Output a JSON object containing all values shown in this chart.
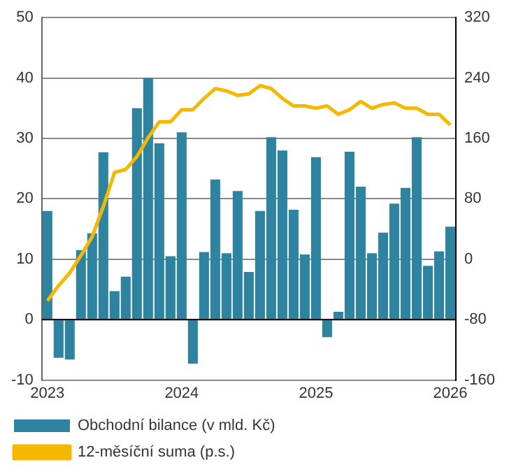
{
  "chart_data": {
    "type": "bar",
    "categories": [
      "2023",
      null,
      null,
      null,
      null,
      null,
      null,
      null,
      null,
      null,
      null,
      null,
      "2024",
      null,
      null,
      null,
      null,
      null,
      null,
      null,
      null,
      null,
      null,
      null,
      "2025",
      null,
      null,
      null,
      null,
      null,
      null,
      null,
      null,
      null,
      null,
      null,
      "2026"
    ],
    "series": [
      {
        "name": "Obchodní bilance (v mld. Kč)",
        "color": "#2e84a0",
        "values": [
          18,
          -6.3,
          -6.6,
          11.5,
          14.3,
          27.7,
          4.7,
          7.1,
          35,
          40,
          29.2,
          10.5,
          31,
          -7.3,
          11.2,
          23.2,
          11,
          21.3,
          7.9,
          18,
          30.2,
          28,
          18.2,
          10.8,
          26.9,
          -2.9,
          1.3,
          27.8,
          22,
          11,
          14.4,
          19.2,
          21.8,
          30.2,
          8.9,
          11.3,
          15.4
        ]
      },
      {
        "name": "12-měsíční suma (p.s.)",
        "type": "line",
        "axis": "y2",
        "color": "#f5b800",
        "values": [
          -55,
          -35,
          -18,
          5,
          30,
          70,
          115,
          119,
          136,
          161,
          182,
          182,
          198,
          198,
          213,
          226,
          223,
          217,
          219,
          230,
          226,
          213,
          203,
          203,
          200,
          203,
          192,
          198,
          209,
          200,
          205,
          207,
          200,
          200,
          192,
          192,
          178
        ]
      }
    ],
    "ylim": [
      -10,
      50
    ],
    "yticks": [
      -10,
      0,
      10,
      20,
      30,
      40,
      50
    ],
    "y2lim": [
      -160,
      320
    ],
    "y2ticks": [
      -160,
      -80,
      0,
      80,
      160,
      240,
      320
    ],
    "grid": "y",
    "legend": "bottom",
    "marker": "none"
  }
}
